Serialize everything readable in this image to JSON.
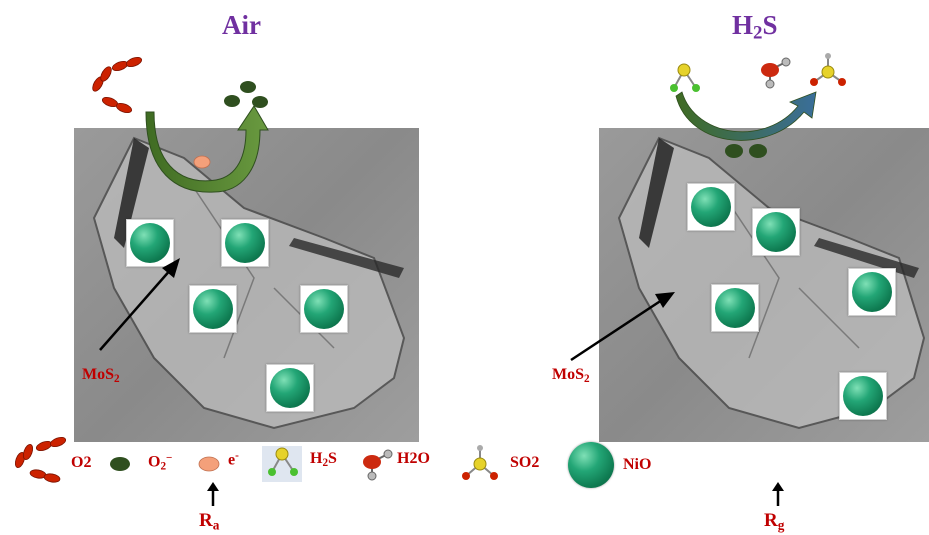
{
  "titles": {
    "air": "Air",
    "h2s_main": "H",
    "h2s_sub": "2",
    "h2s_tail": "S"
  },
  "mos2_label": {
    "main": "MoS",
    "sub": "2"
  },
  "legend": {
    "o2": "O2",
    "o2_minus_main": "O",
    "o2_minus_sub": "2",
    "o2_minus_sup": "−",
    "electron_main": "e",
    "electron_sup": "-",
    "h2s_main": "H",
    "h2s_sub": "2",
    "h2s_tail": "S",
    "h2o": "H2O",
    "so2": "SO2",
    "nio": "NiO"
  },
  "resistance": {
    "ra_main": "R",
    "ra_sub": "a",
    "rg_main": "R",
    "rg_sub": "g"
  },
  "colors": {
    "title": "#7030a0",
    "label": "#c00000",
    "arrow_green": "#4a7a2a",
    "oxygen_red": "#cc2200",
    "o2_minus_green": "#2f4f1f",
    "electron": "#f4a07a",
    "nio_green": "#1a9a6a"
  }
}
